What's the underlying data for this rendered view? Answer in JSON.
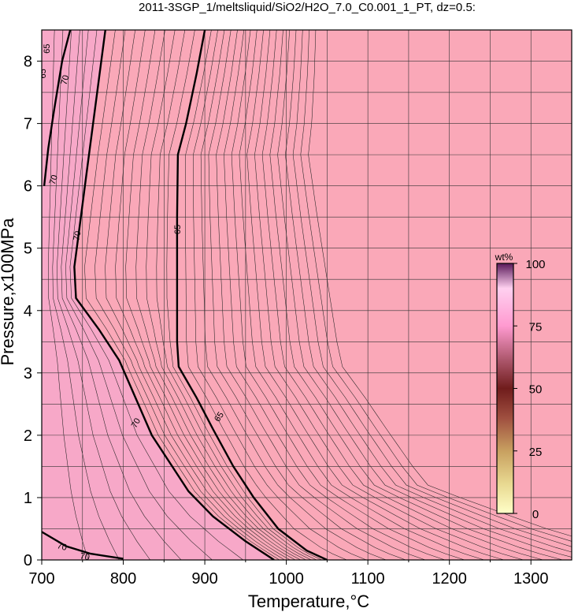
{
  "chart_data": {
    "type": "contour",
    "title": "2011-3SGP_1/meltsliquid/SiO2/H2O_7.0_C0.001_1_PT, dz=0.5:",
    "xlabel": "Temperature,°C",
    "ylabel": "Pressure,x100MPa",
    "xlim": [
      700,
      1350
    ],
    "ylim": [
      0,
      8.5
    ],
    "x_ticks": [
      700,
      800,
      900,
      1000,
      1100,
      1200,
      1300
    ],
    "y_ticks": [
      0,
      1,
      2,
      3,
      4,
      5,
      6,
      7,
      8
    ],
    "grid": true,
    "colors": {
      "high_field": "#f7a8c8",
      "mid_field": "#f9aac0",
      "low_field": "#faa8b8",
      "grid": "#333333",
      "contour": "#000000"
    },
    "major_contours": [
      {
        "label": "70",
        "points": [
          [
            735,
            8.5
          ],
          [
            725,
            8.0
          ],
          [
            715,
            7.2
          ],
          [
            708,
            6.6
          ],
          [
            703,
            6.0
          ]
        ]
      },
      {
        "label": "70",
        "points": [
          [
            778,
            8.5
          ],
          [
            768,
            7.5
          ],
          [
            755,
            6.2
          ],
          [
            745,
            5.2
          ],
          [
            740,
            4.7
          ],
          [
            742,
            4.2
          ],
          [
            770,
            3.7
          ],
          [
            795,
            3.2
          ],
          [
            815,
            2.6
          ],
          [
            835,
            2.0
          ],
          [
            860,
            1.5
          ],
          [
            880,
            1.1
          ],
          [
            910,
            0.7
          ],
          [
            950,
            0.3
          ],
          [
            985,
            0.0
          ]
        ]
      },
      {
        "label": "65",
        "points": [
          [
            900,
            8.5
          ],
          [
            890,
            7.8
          ],
          [
            877,
            7.0
          ],
          [
            867,
            6.5
          ],
          [
            866,
            5.5
          ],
          [
            866,
            4.5
          ],
          [
            866,
            3.5
          ],
          [
            868,
            3.1
          ],
          [
            890,
            2.6
          ],
          [
            910,
            2.1
          ],
          [
            935,
            1.5
          ],
          [
            960,
            1.0
          ],
          [
            990,
            0.5
          ],
          [
            1025,
            0.15
          ],
          [
            1050,
            0.0
          ]
        ]
      },
      {
        "label": "70",
        "points": [
          [
            700,
            0.45
          ],
          [
            730,
            0.22
          ],
          [
            760,
            0.1
          ],
          [
            800,
            0.02
          ]
        ]
      }
    ],
    "contour_labels": [
      {
        "text": "65",
        "x": 706,
        "y": 8.2,
        "rot": -90
      },
      {
        "text": "65",
        "x": 701,
        "y": 7.8,
        "rot": -90
      },
      {
        "text": "70",
        "x": 728,
        "y": 7.7,
        "rot": -75
      },
      {
        "text": "70",
        "x": 714,
        "y": 6.1,
        "rot": -72
      },
      {
        "text": "70",
        "x": 743,
        "y": 5.2,
        "rot": -80
      },
      {
        "text": "65",
        "x": 866,
        "y": 5.3,
        "rot": -90
      },
      {
        "text": "70",
        "x": 815,
        "y": 2.2,
        "rot": -60
      },
      {
        "text": "65",
        "x": 917,
        "y": 2.3,
        "rot": -55
      },
      {
        "text": "70",
        "x": 725,
        "y": 0.22,
        "rot": 15
      },
      {
        "text": "70",
        "x": 753,
        "y": 0.06,
        "rot": 10
      }
    ],
    "colorbar": {
      "unit": "wt%",
      "ticks": [
        0,
        25,
        50,
        75,
        100
      ],
      "stops": [
        "#ffffc8",
        "#e8d890",
        "#c8a060",
        "#a05040",
        "#701c1c",
        "#b05a70",
        "#ff9ad0",
        "#ffd0f0",
        "#5a1a5a"
      ]
    }
  }
}
